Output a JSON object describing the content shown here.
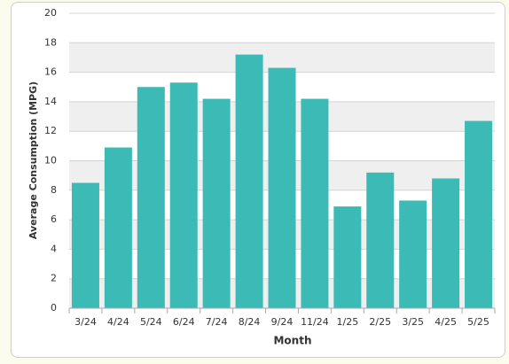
{
  "chart_data": {
    "type": "bar",
    "x_label": "Month",
    "y_label": "Average Consumption (MPG)",
    "categories": [
      "3/24",
      "4/24",
      "5/24",
      "6/24",
      "7/24",
      "8/24",
      "9/24",
      "11/24",
      "1/25",
      "2/25",
      "3/25",
      "4/25",
      "5/25"
    ],
    "values": [
      8.5,
      10.9,
      15.0,
      15.3,
      14.2,
      17.2,
      16.3,
      14.2,
      6.9,
      9.2,
      7.3,
      8.8,
      12.7
    ],
    "color": "#3cbab5",
    "ylim": [
      0,
      20
    ],
    "yticks": [
      0,
      2,
      4,
      6,
      8,
      10,
      12,
      14,
      16,
      18,
      20
    ],
    "grid": true,
    "alternate_bands": true
  }
}
